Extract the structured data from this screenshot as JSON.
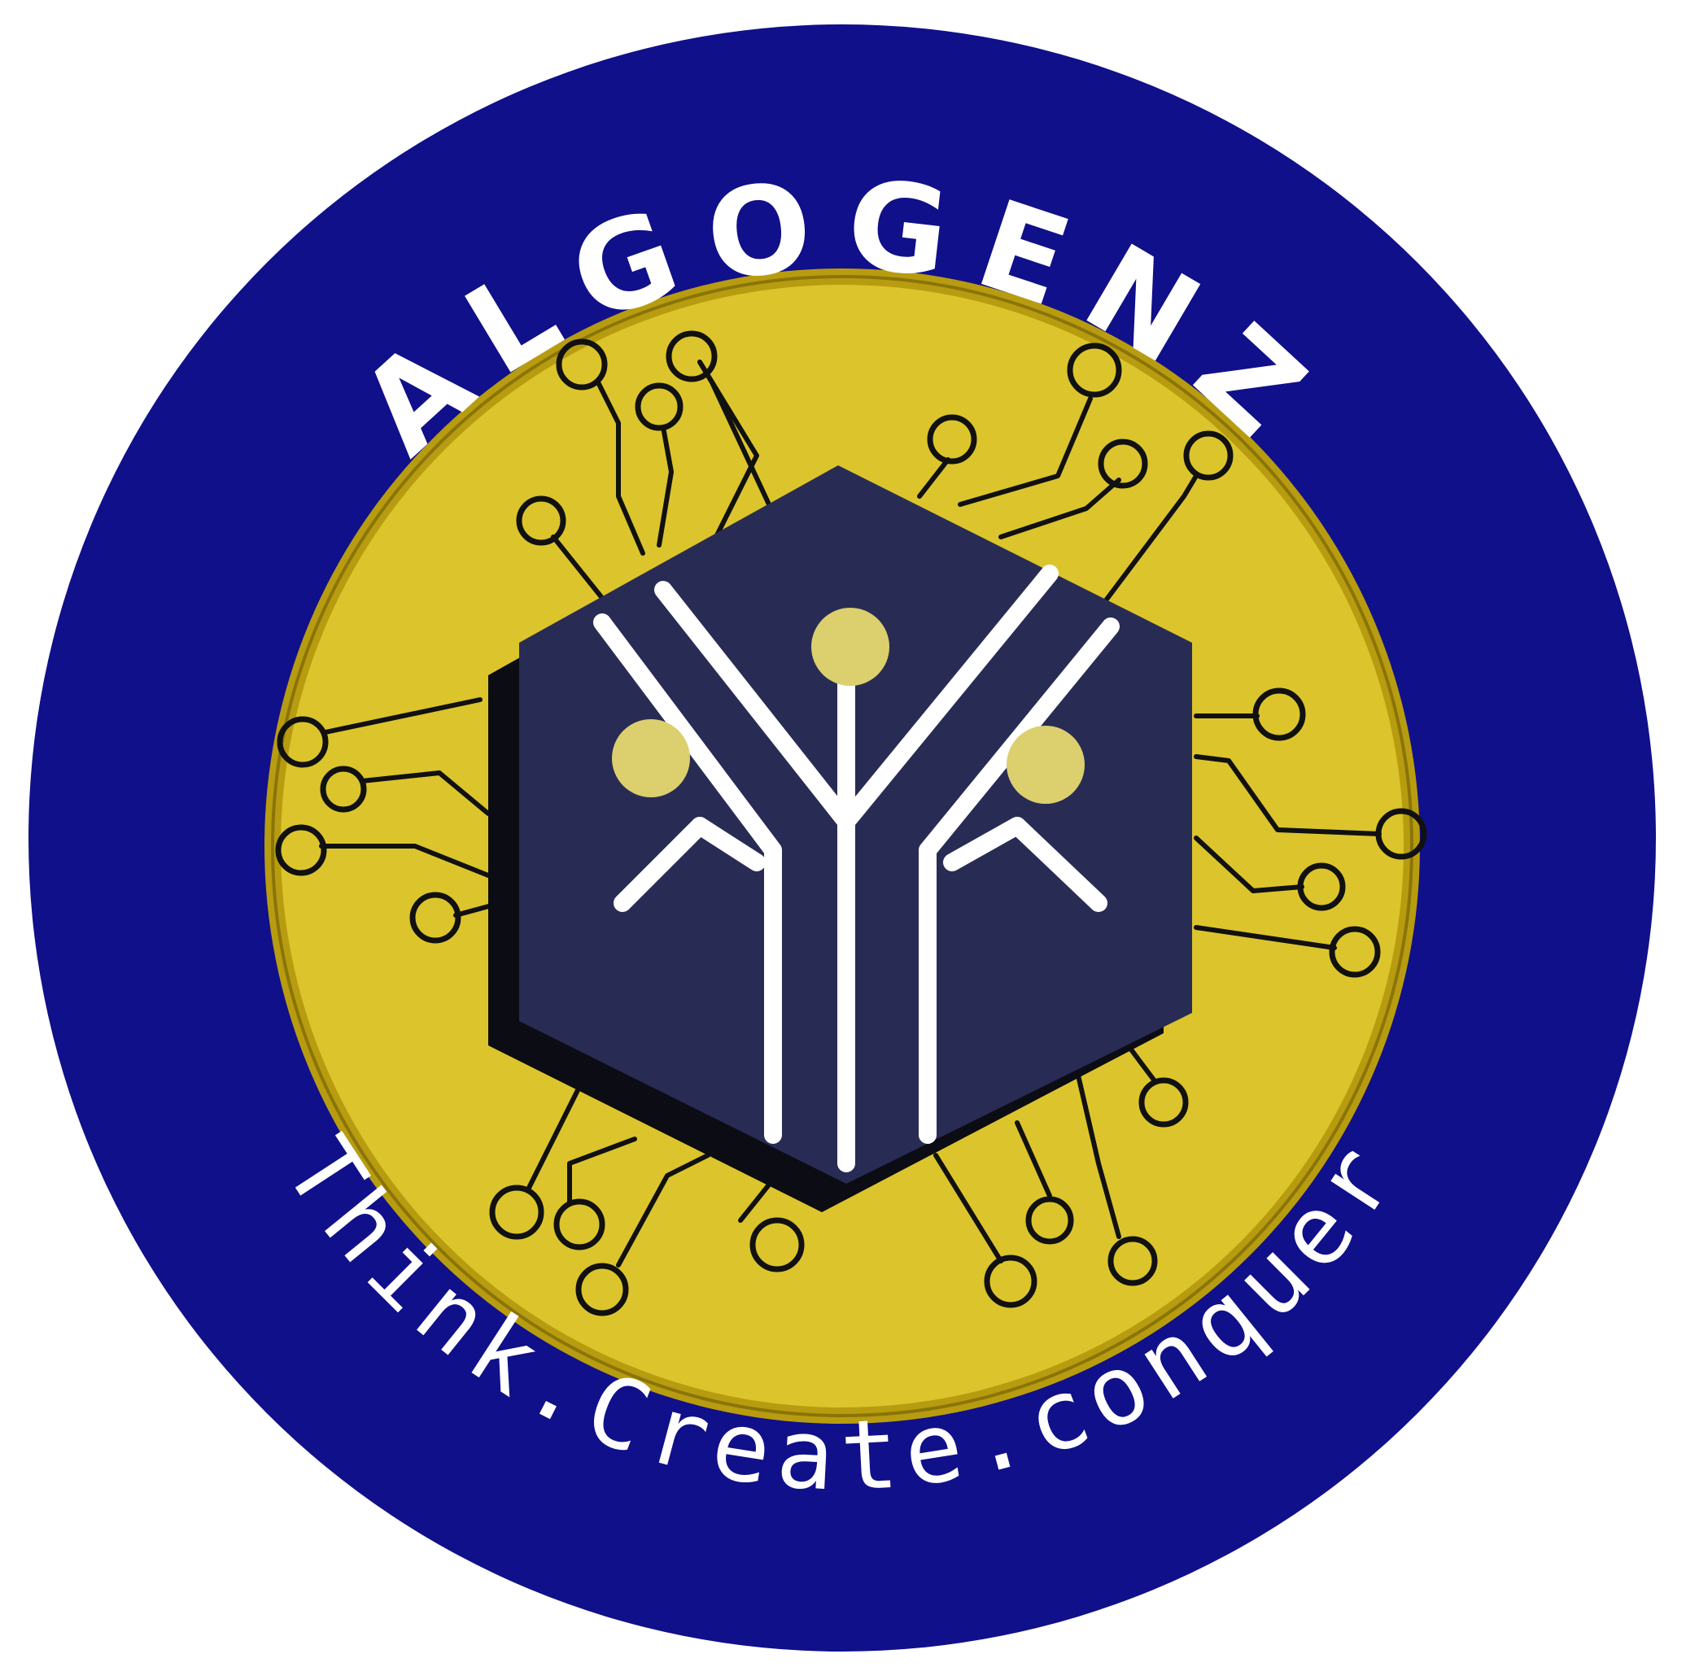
{
  "logo": {
    "title": "ALGOGENZ",
    "tagline": "Think.Create.conquer"
  },
  "colors": {
    "ring": "#10108a",
    "gold": "#dcc42c",
    "gold_edge": "#b89c10",
    "cube": "#282c54",
    "cube_shadow": "#0c0c14",
    "dot": "#dccf6e",
    "text": "#ffffff"
  }
}
